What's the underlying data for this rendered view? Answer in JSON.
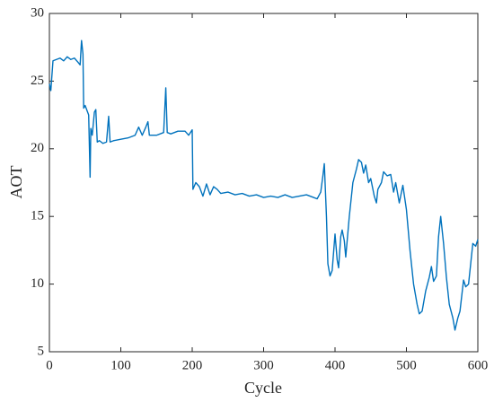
{
  "chart_data": {
    "type": "line",
    "x_label": "Cycle",
    "y_label": "AOT",
    "x": [
      0,
      2,
      5,
      10,
      15,
      20,
      25,
      30,
      35,
      40,
      43,
      45,
      47,
      48,
      50,
      55,
      57,
      58,
      60,
      63,
      65,
      67,
      70,
      75,
      80,
      83,
      85,
      90,
      100,
      110,
      120,
      125,
      130,
      135,
      138,
      140,
      150,
      160,
      163,
      165,
      170,
      180,
      190,
      195,
      200,
      201,
      205,
      210,
      215,
      220,
      225,
      230,
      235,
      240,
      250,
      260,
      270,
      280,
      290,
      300,
      310,
      320,
      330,
      340,
      350,
      360,
      370,
      375,
      380,
      383,
      385,
      388,
      390,
      393,
      396,
      400,
      403,
      405,
      408,
      410,
      413,
      415,
      420,
      425,
      430,
      433,
      437,
      440,
      443,
      447,
      450,
      455,
      458,
      460,
      465,
      468,
      473,
      478,
      482,
      485,
      490,
      495,
      500,
      505,
      510,
      515,
      518,
      522,
      527,
      532,
      535,
      538,
      542,
      545,
      548,
      552,
      556,
      560,
      565,
      568,
      572,
      575,
      580,
      583,
      587,
      590,
      593,
      597,
      600
    ],
    "series": [
      {
        "color": "#0072bd",
        "values": [
          24.8,
          24.3,
          26.5,
          26.6,
          26.7,
          26.5,
          26.8,
          26.6,
          26.7,
          26.4,
          26.2,
          28.0,
          27.0,
          23.0,
          23.2,
          22.5,
          17.9,
          21.5,
          21.0,
          22.7,
          22.9,
          20.5,
          20.6,
          20.4,
          20.5,
          22.4,
          20.5,
          20.6,
          20.7,
          20.8,
          21.0,
          21.6,
          21.0,
          21.6,
          22.0,
          21.0,
          21.0,
          21.2,
          24.5,
          21.2,
          21.1,
          21.3,
          21.3,
          21.0,
          21.4,
          17.0,
          17.5,
          17.2,
          16.5,
          17.4,
          16.6,
          17.2,
          17.0,
          16.7,
          16.8,
          16.6,
          16.7,
          16.5,
          16.6,
          16.4,
          16.5,
          16.4,
          16.6,
          16.4,
          16.5,
          16.6,
          16.4,
          16.3,
          16.8,
          18.0,
          18.9,
          15.0,
          11.5,
          10.6,
          11.0,
          13.7,
          11.8,
          11.2,
          13.5,
          14.0,
          13.2,
          12.0,
          15.0,
          17.5,
          18.5,
          19.2,
          19.0,
          18.2,
          18.8,
          17.5,
          17.8,
          16.5,
          16.0,
          17.0,
          17.5,
          18.3,
          18.0,
          18.1,
          16.8,
          17.5,
          16.0,
          17.3,
          15.5,
          12.5,
          10.0,
          8.5,
          7.8,
          8.0,
          9.5,
          10.5,
          11.3,
          10.2,
          10.6,
          13.5,
          15.0,
          13.0,
          10.5,
          8.5,
          7.5,
          6.6,
          7.5,
          8.0,
          10.3,
          9.8,
          10.0,
          11.5,
          13.0,
          12.8,
          13.3
        ]
      }
    ],
    "xlim": [
      0,
      600
    ],
    "xticks": [
      0,
      100,
      200,
      300,
      400,
      500,
      600
    ],
    "ylim": [
      5,
      30
    ],
    "yticks": [
      5,
      10,
      15,
      20,
      25,
      30
    ]
  }
}
